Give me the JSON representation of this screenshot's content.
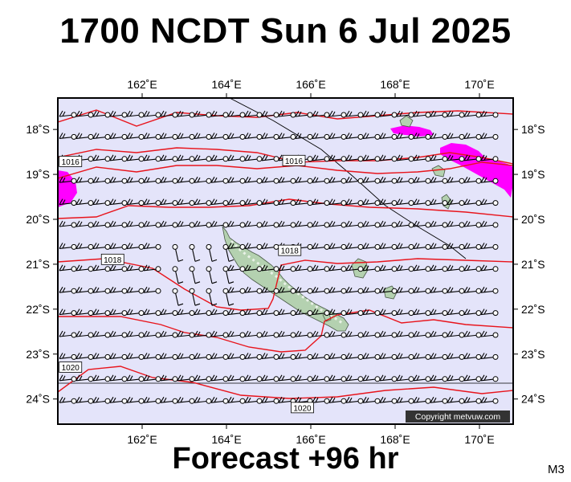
{
  "title": "1700 NCDT Sun 6 Jul 2025",
  "subtitle": "Forecast +96 hr",
  "model_code": "M3",
  "copyright": "Copyright metvuw.com",
  "colors": {
    "ocean": "#e4e4fa",
    "land": "#b4d1b0",
    "isobar": "#e8141c",
    "rain": "#ff00ff",
    "barb": "#000000"
  },
  "axes": {
    "lon_ticks": [
      "162˚E",
      "164˚E",
      "166˚E",
      "168˚E",
      "170˚E"
    ],
    "lat_ticks": [
      "18˚S",
      "19˚S",
      "20˚S",
      "21˚S",
      "22˚S",
      "23˚S",
      "24˚S"
    ]
  },
  "isobar_labels": [
    {
      "text": "1016",
      "lon": 160.3,
      "lat": -18.72
    },
    {
      "text": "1016",
      "lon": 165.6,
      "lat": -18.7
    },
    {
      "text": "1018",
      "lon": 161.3,
      "lat": -20.9
    },
    {
      "text": "1018",
      "lon": 165.5,
      "lat": -20.7
    },
    {
      "text": "1020",
      "lon": 160.3,
      "lat": -23.3
    },
    {
      "text": "1020",
      "lon": 165.8,
      "lat": -24.2
    }
  ]
}
